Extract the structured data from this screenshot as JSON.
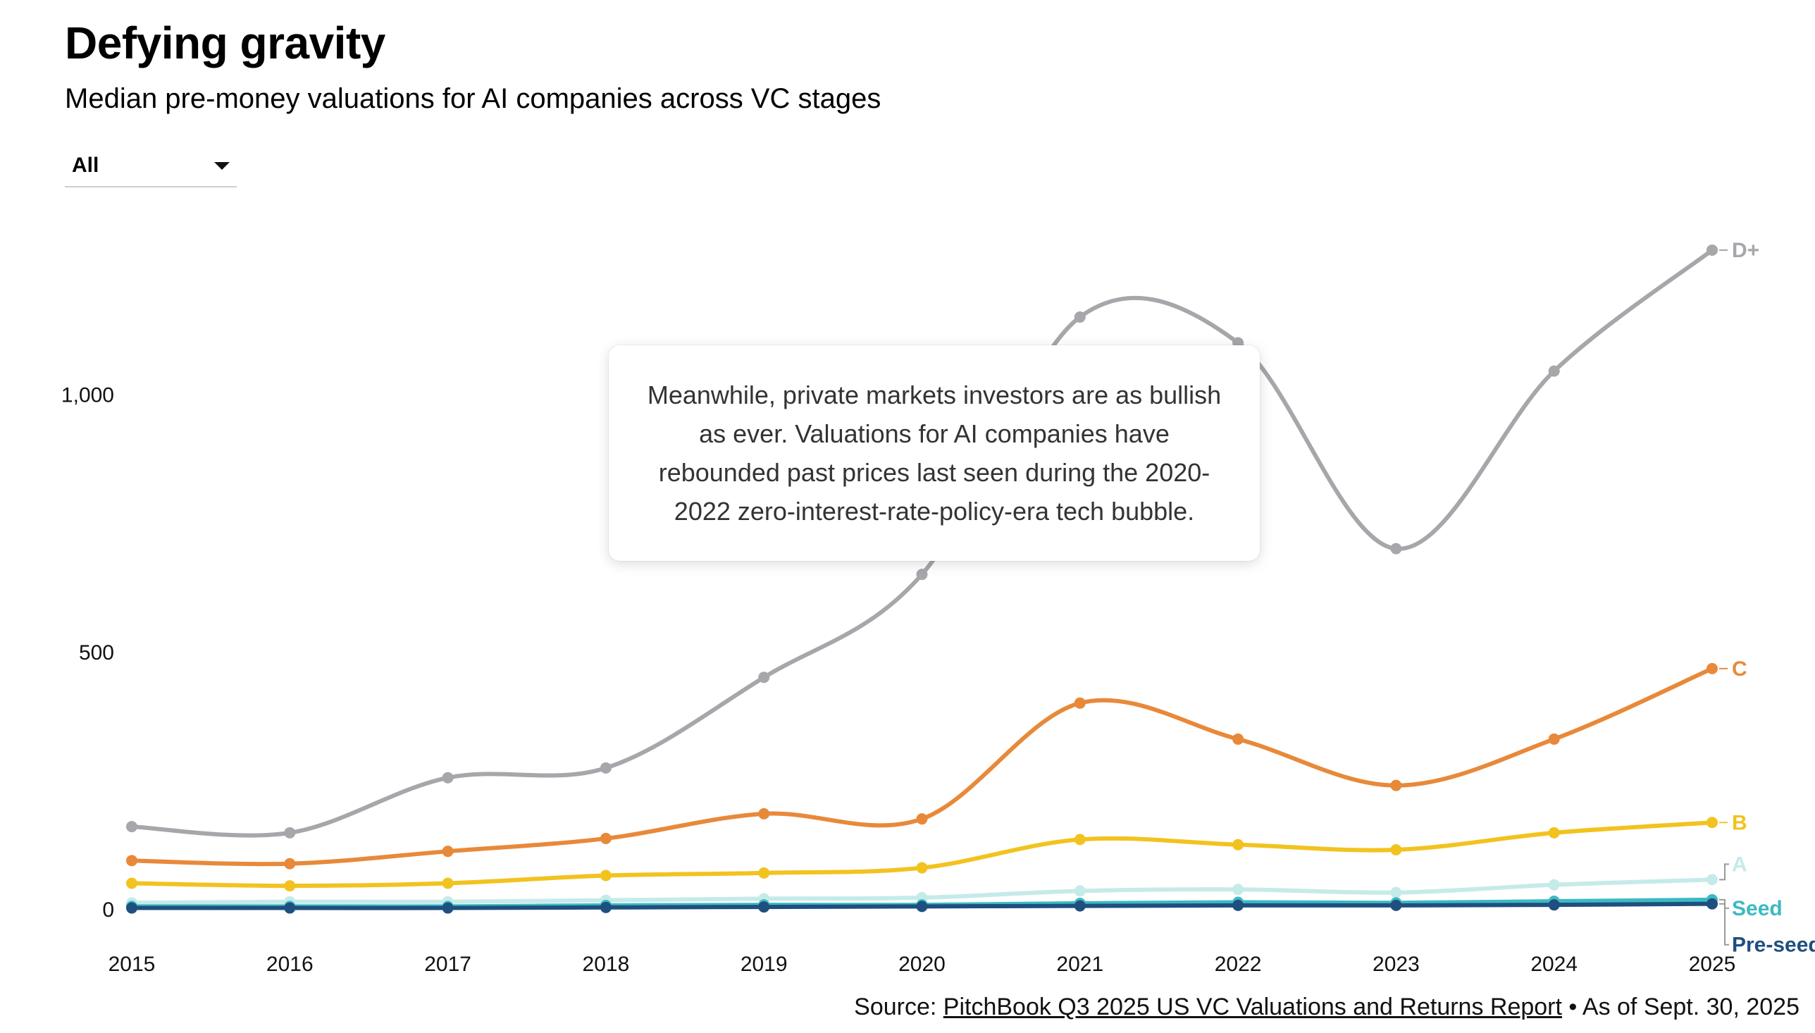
{
  "header": {
    "title": "Defying gravity",
    "subtitle": "Median pre-money valuations for AI companies across VC stages"
  },
  "filter": {
    "selected": "All"
  },
  "callout": {
    "text": "Meanwhile, private markets investors are as bullish as ever. Valuations for AI companies have rebounded past prices last seen during the 2020-2022 zero-interest-rate-policy-era tech bubble."
  },
  "source": {
    "prefix": "Source: ",
    "link_text": "PitchBook Q3 2025 US VC Valuations and Returns Report",
    "suffix": " • As of Sept. 30, 2025"
  },
  "chart_data": {
    "type": "line",
    "title": "Defying gravity",
    "subtitle": "Median pre-money valuations for AI companies across VC stages",
    "x": [
      2015,
      2016,
      2017,
      2018,
      2019,
      2020,
      2021,
      2022,
      2023,
      2024,
      2025
    ],
    "y_ticks": [
      0,
      500,
      1000
    ],
    "y_tick_labels": [
      "0",
      "500",
      "1,000"
    ],
    "ylim": [
      0,
      1350
    ],
    "grid": false,
    "legend": "end-of-line labels",
    "series": [
      {
        "name": "D+",
        "color": "#a6a6ab",
        "values": [
          160,
          148,
          255,
          274,
          450,
          650,
          1150,
          1100,
          700,
          1045,
          1280
        ]
      },
      {
        "name": "C",
        "color": "#e8893a",
        "values": [
          94,
          88,
          112,
          137,
          185,
          175,
          400,
          330,
          240,
          330,
          467
        ]
      },
      {
        "name": "B",
        "color": "#f2c31f",
        "values": [
          50,
          45,
          50,
          65,
          70,
          80,
          135,
          125,
          115,
          148,
          168
        ]
      },
      {
        "name": "A",
        "color": "#c5ebe9",
        "values": [
          12,
          14,
          14,
          17,
          20,
          22,
          35,
          38,
          32,
          47,
          57
        ]
      },
      {
        "name": "Seed",
        "color": "#3bbac2",
        "values": [
          5,
          5,
          5,
          7,
          8,
          8,
          11,
          13,
          12,
          15,
          18
        ]
      },
      {
        "name": "Pre-seed",
        "color": "#1f4f7f",
        "values": [
          2,
          2,
          2,
          3,
          4,
          5,
          6,
          7,
          7,
          8,
          10
        ]
      }
    ]
  }
}
